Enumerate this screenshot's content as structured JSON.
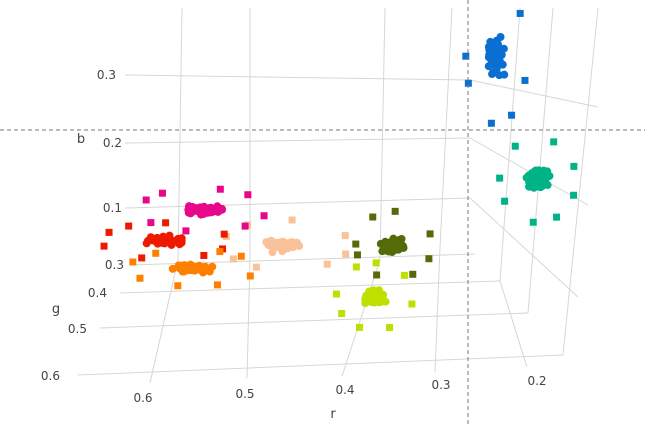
{
  "chart_data": {
    "type": "scatter3d",
    "axes": {
      "x": {
        "label": "r",
        "ticks": [
          "0.6",
          "0.5",
          "0.4",
          "0.3",
          "0.2"
        ]
      },
      "y": {
        "label": "g",
        "ticks": [
          "0.3",
          "0.4",
          "0.5",
          "0.6"
        ]
      },
      "z": {
        "label": "b",
        "ticks": [
          "0.1",
          "0.2",
          "0.3"
        ]
      }
    },
    "grid": true,
    "legend": "none",
    "series": [
      {
        "color": "#0a6fd1",
        "center": {
          "r": 0.275,
          "g": 0.3,
          "b": 0.33
        },
        "spread": [
          0.012,
          0.01,
          0.035
        ]
      },
      {
        "color": "#00b386",
        "center": {
          "r": 0.228,
          "g": 0.35,
          "b": 0.17
        },
        "spread": [
          0.015,
          0.01,
          0.02
        ]
      },
      {
        "color": "#556b0a",
        "center": {
          "r": 0.37,
          "g": 0.4,
          "b": 0.1
        },
        "spread": [
          0.015,
          0.01,
          0.015
        ]
      },
      {
        "color": "#bde000",
        "center": {
          "r": 0.385,
          "g": 0.45,
          "b": 0.05
        },
        "spread": [
          0.015,
          0.01,
          0.015
        ]
      },
      {
        "color": "#f9c298",
        "center": {
          "r": 0.48,
          "g": 0.4,
          "b": 0.1
        },
        "spread": [
          0.025,
          0.01,
          0.01
        ]
      },
      {
        "color": "#e8068a",
        "center": {
          "r": 0.57,
          "g": 0.35,
          "b": 0.125
        },
        "spread": [
          0.025,
          0.01,
          0.008
        ]
      },
      {
        "color": "#ee1a00",
        "center": {
          "r": 0.613,
          "g": 0.3,
          "b": 0.05
        },
        "spread": [
          0.025,
          0.01,
          0.006
        ]
      },
      {
        "color": "#ff7f00",
        "center": {
          "r": 0.58,
          "g": 0.35,
          "b": 0.037
        },
        "spread": [
          0.025,
          0.01,
          0.006
        ]
      }
    ]
  }
}
